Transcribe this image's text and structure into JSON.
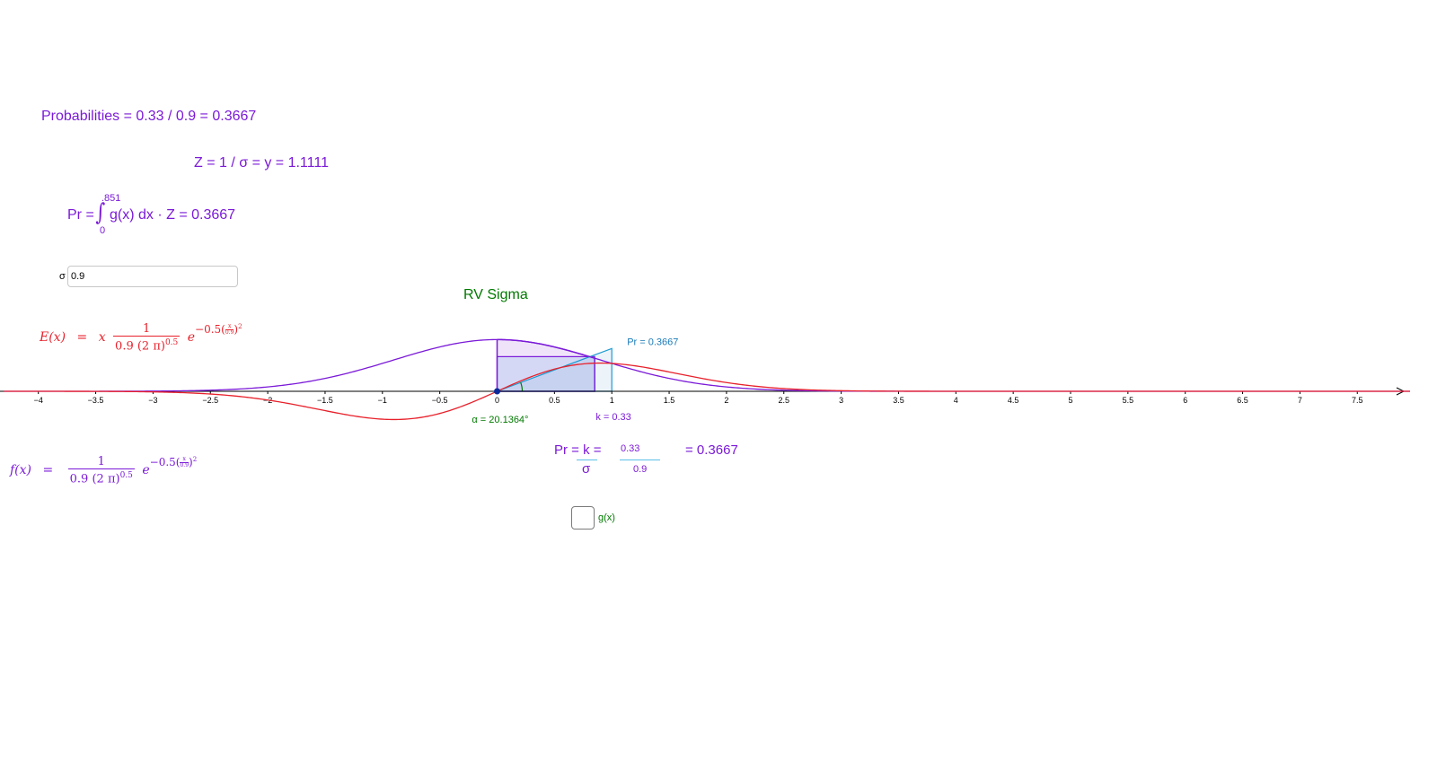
{
  "colors": {
    "purple": "#7b1ad8",
    "red": "#e8212b",
    "green": "#007a00",
    "blue": "#1a7ab8",
    "axis": "#000000"
  },
  "probabilities_text": "Probabilities = 0.33 / 0.9 = 0.3667",
  "z_text": "Z = 1 / σ = y = 1.1111",
  "pr_integral": {
    "lhs": "Pr =",
    "upper": ".851",
    "lower": "0",
    "body": "g(x) dx · Z  =  0.3667"
  },
  "sigma": {
    "label": "σ",
    "value": "0.9"
  },
  "chart_data": {
    "type": "line",
    "title": "RV Sigma",
    "xlim": [
      -4.3,
      7.9
    ],
    "xticks": [
      -4,
      -3.5,
      -3,
      -2.5,
      -2,
      -1.5,
      -1,
      -0.5,
      0,
      0.5,
      1,
      1.5,
      2,
      2.5,
      3,
      3.5,
      4,
      4.5,
      5,
      5.5,
      6,
      6.5,
      7,
      7.5
    ],
    "xtick_labels": [
      "−4",
      "−3.5",
      "−3",
      "−2.5",
      "−2",
      "−1.5",
      "−1",
      "−0.5",
      "0",
      "0.5",
      "1",
      "1.5",
      "2",
      "2.5",
      "3",
      "3.5",
      "4",
      "4.5",
      "5",
      "5.5",
      "6",
      "6.5",
      "7",
      "7.5"
    ],
    "sigma": 0.9,
    "k": 0.33,
    "series": [
      {
        "name": "f(x)",
        "formula": "1/(0.9(2π)^0.5) · e^(−0.5(x/0.9)^2)",
        "color": "#7b1ad8"
      },
      {
        "name": "E(x)",
        "formula": "x · 1/(0.9(2π)^0.5) · e^(−0.5(x/0.9)^2)",
        "color": "#e8212b"
      }
    ],
    "shaded_region": {
      "from": 0,
      "to": 0.851,
      "color": "#7b1ad8"
    },
    "k_rect": {
      "from": 0,
      "to": 0.851,
      "height": 0.33
    },
    "triangle": {
      "base_from": 0,
      "base_to": 1,
      "height": 0.3667
    },
    "annotations": {
      "pr": "Pr = 0.3667",
      "k": "k = 0.33",
      "alpha": "α = 20.1364°"
    }
  },
  "E_formula": {
    "lhs": "E(x)",
    "eq": "=",
    "x": "x",
    "num": "1",
    "den": "0.9 (2 π)",
    "den_exp": "0.5",
    "e": "e",
    "exp": "−0.5",
    "exp_num": "x",
    "exp_den": "0.9",
    "exp_pow": "2"
  },
  "f_formula": {
    "lhs": "f(x)",
    "eq": "=",
    "num": "1",
    "den": "0.9 (2 π)",
    "den_exp": "0.5",
    "e": "e",
    "exp": "−0.5",
    "exp_num": "x",
    "exp_den": "0.9",
    "exp_pow": "2"
  },
  "pr_ratio": {
    "lhs": "Pr = k  =",
    "sigma": "σ",
    "num": "0.33",
    "den": "0.9",
    "result": "=   0.3667"
  },
  "g_checkbox": {
    "label": "g(x)",
    "checked": false
  }
}
